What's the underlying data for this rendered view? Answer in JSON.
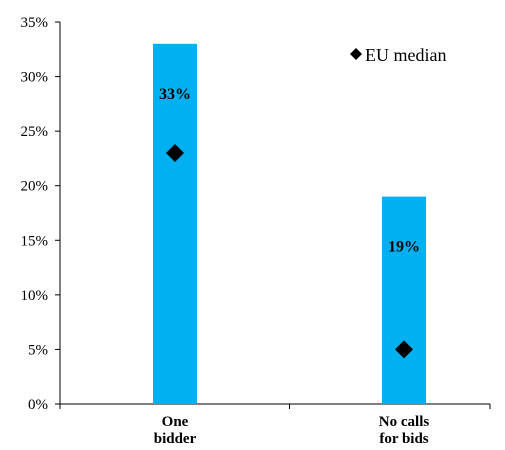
{
  "chart_data": {
    "type": "bar",
    "categories": [
      [
        "One",
        "bidder"
      ],
      [
        "No calls",
        "for bids"
      ]
    ],
    "series": [
      {
        "values": [
          33,
          19
        ],
        "data_labels": [
          "33%",
          "19%"
        ],
        "color": "#00b0f0"
      },
      {
        "name": "EU median",
        "type": "scatter",
        "marker": "diamond",
        "values": [
          23,
          5
        ],
        "color": "#000000"
      }
    ],
    "y_ticks": [
      "0%",
      "5%",
      "10%",
      "15%",
      "20%",
      "25%",
      "30%",
      "35%"
    ],
    "ylim": [
      0,
      35
    ],
    "grid": false,
    "legend": {
      "position": "top-right",
      "entries": [
        {
          "marker": "diamond",
          "label": "EU median"
        }
      ]
    }
  }
}
